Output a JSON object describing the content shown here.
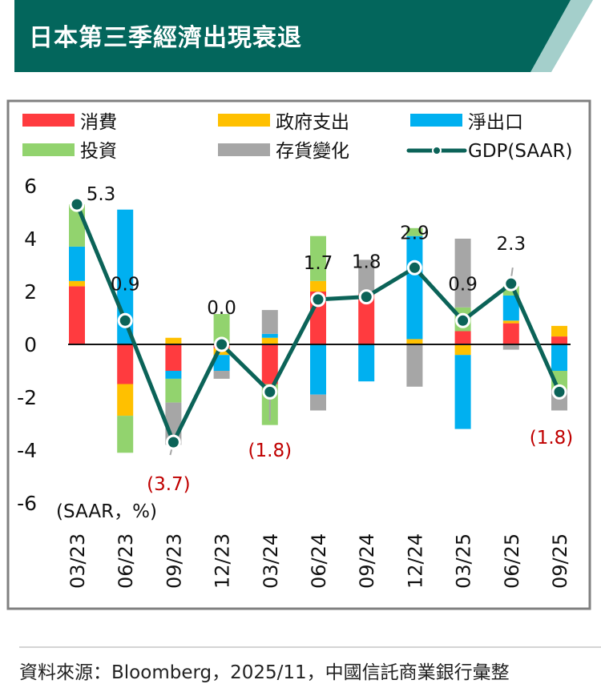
{
  "header": {
    "title": "日本第三季經濟出現衰退"
  },
  "footer": {
    "source": "資料來源：Bloomberg，2025/11，中國信託商業銀行彙整"
  },
  "colors": {
    "title_bar": "#03665c",
    "title_accent": "#a4cfcb",
    "consumption": "#ff3b3f",
    "government": "#ffc000",
    "net_exports": "#00b0f0",
    "investment": "#92d36e",
    "inventory": "#a6a6a6",
    "gdp_line": "#0b6358",
    "negative_label": "#c00000",
    "frame": "#808080"
  },
  "chart_data": {
    "type": "bar",
    "stacked": true,
    "title": "日本第三季經濟出現衰退",
    "unit_label": "(SAAR，%)",
    "ylim": [
      -6,
      6
    ],
    "yticks": [
      6,
      4,
      2,
      0,
      -2,
      -4,
      -6
    ],
    "categories": [
      "03/23",
      "06/23",
      "09/23",
      "12/23",
      "03/24",
      "06/24",
      "09/24",
      "12/24",
      "03/25",
      "06/25",
      "09/25"
    ],
    "legend": [
      {
        "key": "consumption",
        "label": "消費"
      },
      {
        "key": "government",
        "label": "政府支出"
      },
      {
        "key": "net_exports",
        "label": "淨出口"
      },
      {
        "key": "investment",
        "label": "投資"
      },
      {
        "key": "inventory",
        "label": "存貨變化"
      },
      {
        "key": "gdp",
        "label": "GDP(SAAR)"
      }
    ],
    "series": [
      {
        "key": "consumption",
        "name": "消費",
        "values": [
          2.2,
          -1.5,
          -1.0,
          -0.15,
          -1.5,
          2.0,
          1.9,
          0,
          0.5,
          0.8,
          0.3
        ]
      },
      {
        "key": "government",
        "name": "政府支出",
        "values": [
          0.2,
          -1.2,
          0.25,
          -0.25,
          0.25,
          0.4,
          0,
          0.2,
          -0.4,
          0.1,
          0.4
        ]
      },
      {
        "key": "net_exports",
        "name": "淨出口",
        "values": [
          1.3,
          5.1,
          -0.3,
          -0.6,
          0.15,
          -1.9,
          -1.4,
          3.9,
          -2.8,
          0.95,
          -1.0
        ]
      },
      {
        "key": "investment",
        "name": "投資",
        "values": [
          1.6,
          -1.4,
          -0.9,
          1.15,
          -1.55,
          1.7,
          0,
          0.3,
          0.9,
          0.35,
          -0.7
        ]
      },
      {
        "key": "inventory",
        "name": "存貨變化",
        "values": [
          0,
          0,
          -1.6,
          -0.3,
          0.9,
          -0.6,
          1.3,
          -1.6,
          2.6,
          -0.2,
          -0.8
        ]
      }
    ],
    "gdp": {
      "name": "GDP(SAAR)",
      "values": [
        5.3,
        0.9,
        -3.7,
        0.0,
        -1.8,
        1.7,
        1.8,
        2.9,
        0.9,
        2.3,
        -1.8
      ],
      "labels": [
        "5.3",
        "0.9",
        "(3.7)",
        "0.0",
        "(1.8)",
        "1.7",
        "1.8",
        "2.9",
        "0.9",
        "2.3",
        "(1.8)"
      ]
    }
  }
}
